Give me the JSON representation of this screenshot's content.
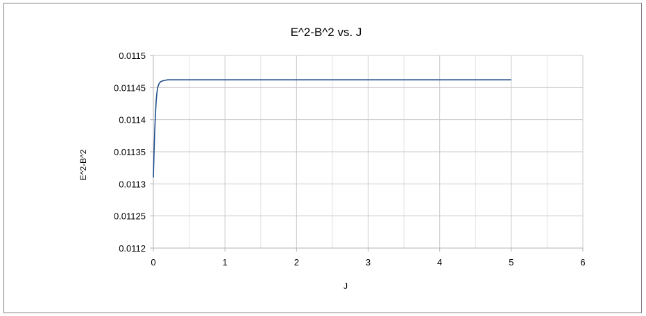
{
  "chart_data": {
    "type": "scatter",
    "title": "E^2-B^2  vs. J",
    "xlabel": "J",
    "ylabel": "E^2-B^2",
    "xlim": [
      0,
      6
    ],
    "ylim": [
      0.0112,
      0.0115
    ],
    "x_ticks": [
      0,
      1,
      2,
      3,
      4,
      5,
      6
    ],
    "x_tick_labels": [
      "0",
      "1",
      "2",
      "3",
      "4",
      "5",
      "6"
    ],
    "y_ticks": [
      0.0112,
      0.01125,
      0.0113,
      0.01135,
      0.0114,
      0.01145,
      0.0115
    ],
    "y_tick_labels": [
      "0.0112",
      "0.01125",
      "0.0113",
      "0.01135",
      "0.0114",
      "0.01145",
      "0.0115"
    ],
    "grid": true,
    "legend": "none",
    "series": [
      {
        "color": "#1f4e8c",
        "style": "line",
        "x": [
          0.0,
          0.01,
          0.02,
          0.03,
          0.04,
          0.05,
          0.06,
          0.08,
          0.1,
          0.12,
          0.15,
          0.2,
          0.3,
          0.5,
          1.0,
          2.0,
          3.0,
          4.0,
          5.0
        ],
        "y": [
          0.01131,
          0.01135,
          0.011385,
          0.01141,
          0.01143,
          0.011442,
          0.01145,
          0.011456,
          0.011459,
          0.01146,
          0.011461,
          0.011462,
          0.011462,
          0.011462,
          0.011462,
          0.011462,
          0.011462,
          0.011462,
          0.011462
        ]
      }
    ]
  }
}
